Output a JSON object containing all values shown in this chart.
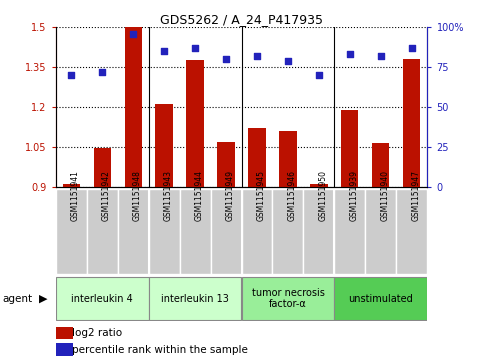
{
  "title": "GDS5262 / A_24_P417935",
  "samples": [
    "GSM1151941",
    "GSM1151942",
    "GSM1151948",
    "GSM1151943",
    "GSM1151944",
    "GSM1151949",
    "GSM1151945",
    "GSM1151946",
    "GSM1151950",
    "GSM1151939",
    "GSM1151940",
    "GSM1151947"
  ],
  "log2_ratio": [
    0.91,
    1.045,
    1.5,
    1.21,
    1.375,
    1.07,
    1.12,
    1.11,
    0.91,
    1.19,
    1.065,
    1.38
  ],
  "percentile": [
    70,
    72,
    96,
    85,
    87,
    80,
    82,
    79,
    70,
    83,
    82,
    87
  ],
  "agents": [
    {
      "label": "interleukin 4",
      "start": 0,
      "end": 3,
      "color": "#ccffcc"
    },
    {
      "label": "interleukin 13",
      "start": 3,
      "end": 6,
      "color": "#ccffcc"
    },
    {
      "label": "tumor necrosis\nfactor-α",
      "start": 6,
      "end": 9,
      "color": "#99ee99"
    },
    {
      "label": "unstimulated",
      "start": 9,
      "end": 12,
      "color": "#55cc55"
    }
  ],
  "ylim": [
    0.9,
    1.5
  ],
  "yticks_left": [
    0.9,
    1.05,
    1.2,
    1.35,
    1.5
  ],
  "yticks_right": [
    0,
    25,
    50,
    75,
    100
  ],
  "bar_color": "#bb1100",
  "dot_color": "#2222bb",
  "background_color": "#ffffff",
  "sample_box_color": "#cccccc",
  "agent_label": "agent",
  "legend_log2": "log2 ratio",
  "legend_pct": "percentile rank within the sample",
  "group_boundaries": [
    2.5,
    5.5,
    8.5
  ]
}
